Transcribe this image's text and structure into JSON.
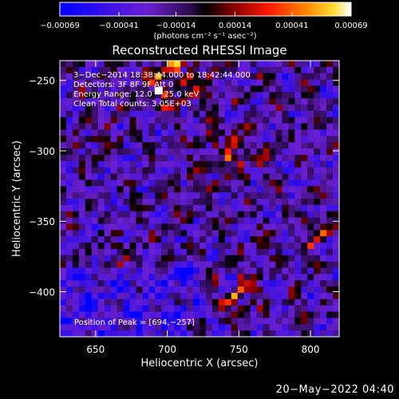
{
  "chart_data": {
    "type": "heatmap",
    "title": "Reconstructed RHESSI Image",
    "xlabel": "Heliocentric X (arcsec)",
    "ylabel": "Heliocentric Y (arcsec)",
    "xlim": [
      625,
      820
    ],
    "ylim": [
      -432,
      -236
    ],
    "xticks": [
      650,
      700,
      750,
      800
    ],
    "yticks": [
      -250,
      -300,
      -350,
      -400
    ],
    "xtick_labels": [
      "650",
      "700",
      "750",
      "800"
    ],
    "ytick_labels": [
      "−250",
      "−300",
      "−350",
      "−400"
    ],
    "colorbar": {
      "range": [
        -0.00069,
        0.00069
      ],
      "ticks": [
        -0.00069,
        -0.00041,
        -0.00014,
        0.00014,
        0.00041,
        0.00069
      ],
      "tick_labels": [
        "−0.00069",
        "−0.00041",
        "−0.00014",
        "0.00014",
        "0.00041",
        "0.00069"
      ],
      "unit_label": "(photons cm⁻² s⁻¹ asec⁻²)"
    },
    "annotations": {
      "time_range": "3−Dec−2014 18:38:44.000 to 18:42:44.000",
      "detectors": "Detectors: 3F 8F 9F Att 0",
      "energy": "Energy Range: 12.0 − 25.0 keV",
      "clean": "Clean     Total counts: 3.05E+03",
      "peak": "Position of Peak = [694,−257]"
    },
    "peak": {
      "x": 694,
      "y": -257
    },
    "grid": false
  },
  "footer": {
    "timestamp": "20−May−2022 04:40"
  }
}
